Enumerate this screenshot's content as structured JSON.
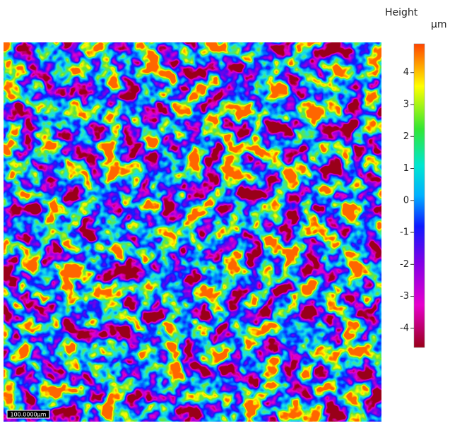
{
  "colorbar": {
    "title": "Height",
    "unit": "µm",
    "range": [
      -4.6,
      4.9
    ],
    "ticks": [
      4,
      3,
      2,
      1,
      0,
      -1,
      -2,
      -3,
      -4
    ]
  },
  "scale_bar": {
    "label": "100.0000µm"
  }
}
